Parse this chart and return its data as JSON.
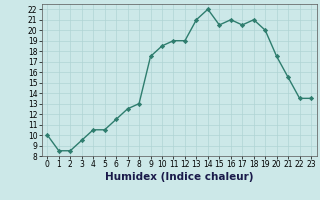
{
  "xlabel": "Humidex (Indice chaleur)",
  "x": [
    0,
    1,
    2,
    3,
    4,
    5,
    6,
    7,
    8,
    9,
    10,
    11,
    12,
    13,
    14,
    15,
    16,
    17,
    18,
    19,
    20,
    21,
    22,
    23
  ],
  "y": [
    10,
    8.5,
    8.5,
    9.5,
    10.5,
    10.5,
    11.5,
    12.5,
    13.0,
    17.5,
    18.5,
    19.0,
    19.0,
    21.0,
    22.0,
    20.5,
    21.0,
    20.5,
    21.0,
    20.0,
    17.5,
    15.5,
    13.5,
    13.5
  ],
  "line_color": "#2e7d6e",
  "marker": "D",
  "markersize": 2.2,
  "linewidth": 1.0,
  "bg_color": "#cce8e8",
  "grid_color": "#b0d4d4",
  "ylim": [
    8,
    22.5
  ],
  "xlim": [
    -0.5,
    23.5
  ],
  "yticks": [
    8,
    9,
    10,
    11,
    12,
    13,
    14,
    15,
    16,
    17,
    18,
    19,
    20,
    21,
    22
  ],
  "xtick_labels": [
    "0",
    "1",
    "2",
    "3",
    "4",
    "5",
    "6",
    "7",
    "8",
    "9",
    "10",
    "11",
    "12",
    "13",
    "14",
    "15",
    "16",
    "17",
    "18",
    "19",
    "20",
    "21",
    "22",
    "23"
  ],
  "tick_fontsize": 5.5,
  "xlabel_fontsize": 7.5
}
